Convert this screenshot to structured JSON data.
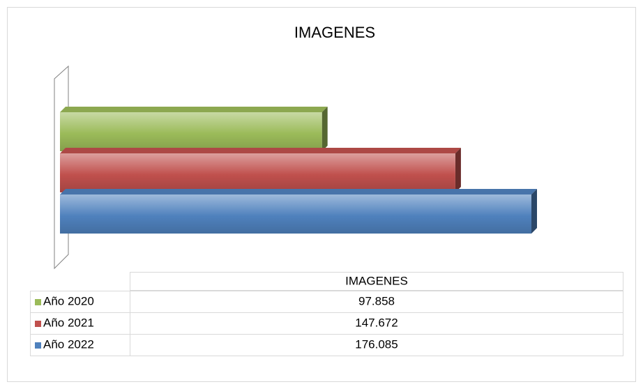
{
  "chart_data": {
    "type": "bar3d",
    "title": "IMAGENES",
    "categories": [
      "Año 2020",
      "Año 2021",
      "Año 2022"
    ],
    "values": [
      97858,
      147672,
      176085
    ],
    "value_labels": [
      "97.858",
      "147.672",
      "176.085"
    ],
    "colors": [
      "#9bbb59",
      "#c0504d",
      "#4f81bd"
    ],
    "table_header": "IMAGENES"
  }
}
